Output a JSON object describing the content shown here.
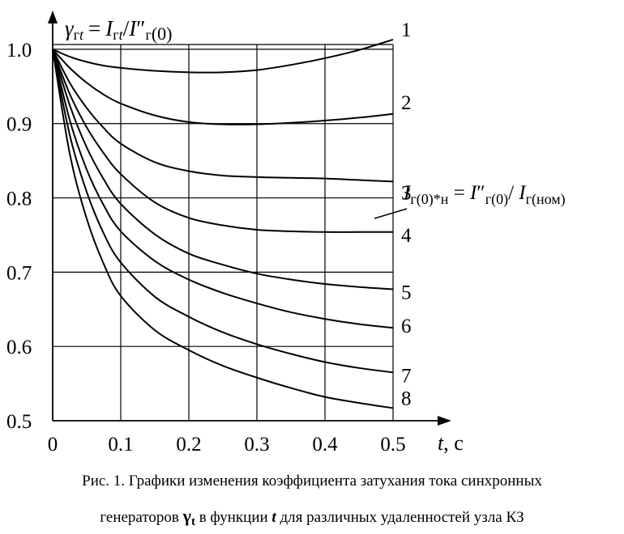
{
  "chart_data": {
    "type": "line",
    "y_axis_title": {
      "gamma": "γ",
      "gamma_sub": "г",
      "t_sub": "t",
      "eq": "=",
      "I": "I",
      "I_sub": "г",
      "slash": "/",
      "I2": "I",
      "prime": "″",
      "I2_sub": "г",
      "zero": "(0)"
    },
    "x_axis_title": {
      "t": "t",
      "unit": ", с"
    },
    "xlim": [
      0,
      0.5
    ],
    "ylim": [
      0.5,
      1.05
    ],
    "x_ticks": [
      "0",
      "0.1",
      "0.2",
      "0.3",
      "0.4",
      "0.5"
    ],
    "x_tick_values": [
      0,
      0.1,
      0.2,
      0.3,
      0.4,
      0.5
    ],
    "y_ticks": [
      "0.5",
      "0.6",
      "0.7",
      "0.8",
      "0.9",
      "1.0"
    ],
    "y_tick_values": [
      0.5,
      0.6,
      0.7,
      0.8,
      0.9,
      1.0
    ],
    "grid": true,
    "x": [
      0,
      0.025,
      0.05,
      0.075,
      0.1,
      0.15,
      0.2,
      0.25,
      0.3,
      0.35,
      0.4,
      0.45,
      0.5
    ],
    "series": [
      {
        "name": "1",
        "values": [
          1.0,
          0.99,
          0.983,
          0.978,
          0.975,
          0.971,
          0.969,
          0.969,
          0.972,
          0.979,
          0.988,
          0.999,
          1.013
        ]
      },
      {
        "name": "2",
        "values": [
          1.0,
          0.975,
          0.955,
          0.939,
          0.927,
          0.911,
          0.902,
          0.899,
          0.899,
          0.901,
          0.904,
          0.908,
          0.913
        ]
      },
      {
        "name": "3",
        "values": [
          1.0,
          0.955,
          0.921,
          0.894,
          0.873,
          0.848,
          0.836,
          0.83,
          0.828,
          0.827,
          0.826,
          0.824,
          0.822
        ]
      },
      {
        "name": "4",
        "values": [
          1.0,
          0.94,
          0.895,
          0.86,
          0.832,
          0.794,
          0.773,
          0.763,
          0.757,
          0.755,
          0.754,
          0.754,
          0.754
        ]
      },
      {
        "name": "5",
        "values": [
          1.0,
          0.925,
          0.868,
          0.825,
          0.792,
          0.751,
          0.725,
          0.71,
          0.698,
          0.69,
          0.684,
          0.68,
          0.677
        ]
      },
      {
        "name": "6",
        "values": [
          1.0,
          0.905,
          0.838,
          0.79,
          0.755,
          0.715,
          0.69,
          0.672,
          0.658,
          0.646,
          0.637,
          0.63,
          0.625
        ]
      },
      {
        "name": "7",
        "values": [
          1.0,
          0.885,
          0.808,
          0.752,
          0.713,
          0.667,
          0.64,
          0.619,
          0.603,
          0.59,
          0.579,
          0.571,
          0.565
        ]
      },
      {
        "name": "8",
        "values": [
          1.0,
          0.86,
          0.772,
          0.711,
          0.668,
          0.622,
          0.595,
          0.574,
          0.558,
          0.544,
          0.532,
          0.524,
          0.517
        ]
      }
    ],
    "annotation": {
      "I1": "I",
      "sub1": "г(0)",
      "star": "*",
      "sub_n": "н",
      "eq": " = ",
      "I2": "I",
      "prime": "″",
      "sub2": "г(0)",
      "slash": "/ ",
      "I3": "I",
      "sub3": "г(ном)"
    }
  },
  "caption": {
    "line1": "Рис. 1. Графики изменения коэффициента затухания тока синхронных",
    "line2_pre": "генераторов",
    "symbol": "γ",
    "symbol_sub": "t",
    "line2_mid": "в функции",
    "t_symbol": "t",
    "line2_post": "для различных удаленностей  узла  КЗ"
  },
  "colors": {
    "line": "#000000",
    "grid": "#000000",
    "background": "#ffffff"
  }
}
